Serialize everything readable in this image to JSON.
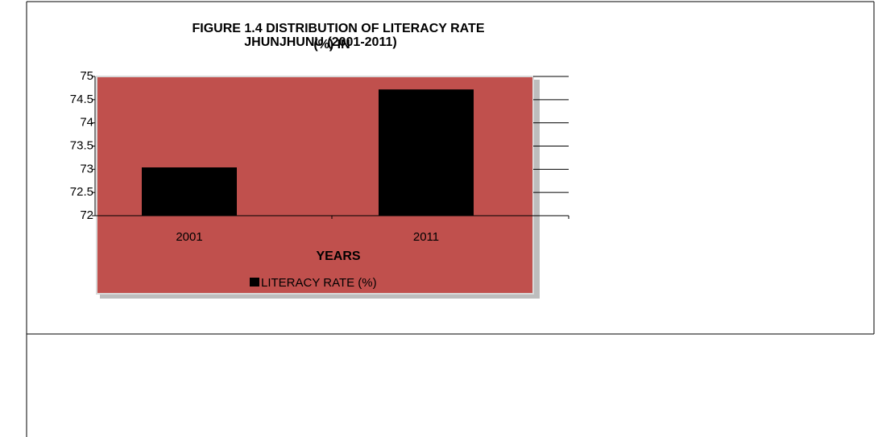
{
  "chart_data": {
    "type": "bar",
    "title": [
      "FIGURE  1.4 DISTRIBUTION OF  LITERACY RATE",
      "(%) IN",
      "JHUNJHUNU (2001-2011)"
    ],
    "x_label": "YEARS",
    "categories": [
      "2001",
      "2011"
    ],
    "series": [
      {
        "name": "LITERACY  RATE (%)",
        "color": "#000000",
        "values": [
          73.04,
          74.72
        ]
      }
    ],
    "ylim": [
      72,
      75
    ],
    "yticks": [
      72,
      72.5,
      73,
      73.5,
      74,
      74.5,
      75
    ],
    "plot_background": "#c0504d",
    "legend": "bottom"
  }
}
